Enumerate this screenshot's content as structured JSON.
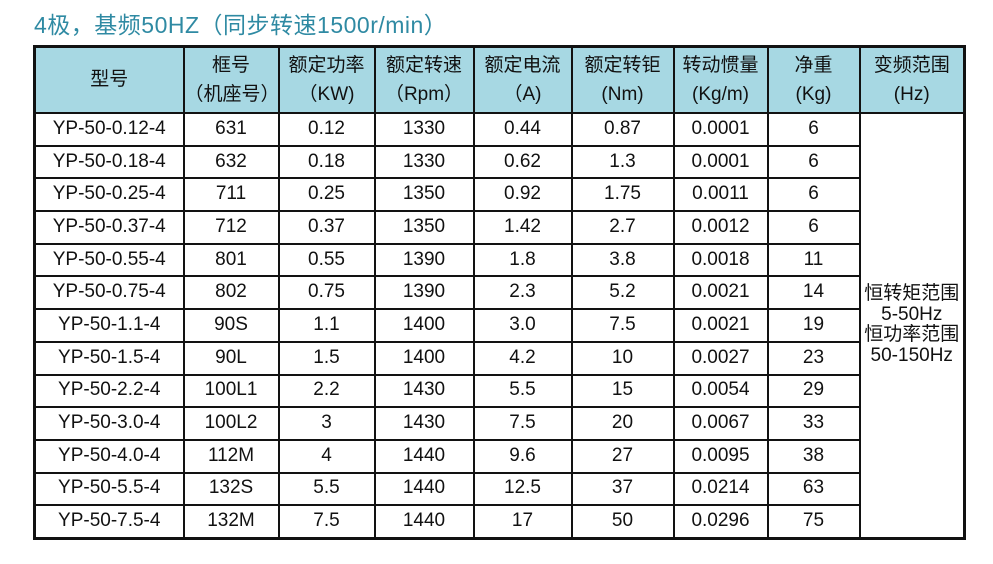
{
  "title": "4极，基频50HZ（同步转速1500r/min）",
  "colors": {
    "title_text": "#2f8aa3",
    "header_bg": "#a7d8e3",
    "border": "#121212",
    "cell_bg": "#ffffff"
  },
  "chart_data": {
    "type": "table",
    "title": "4极，基频50HZ（同步转速1500r/min）",
    "columns": [
      {
        "line1": "型号",
        "line2": ""
      },
      {
        "line1": "框号",
        "line2": "（机座号）"
      },
      {
        "line1": "额定功率",
        "line2": "（KW)"
      },
      {
        "line1": "额定转速",
        "line2": "（Rpm）"
      },
      {
        "line1": "额定电流",
        "line2": "（A)"
      },
      {
        "line1": "额定转钜",
        "line2": "(Nm)"
      },
      {
        "line1": "转动惯量",
        "line2": "(Kg/m)"
      },
      {
        "line1": "净重",
        "line2": "(Kg)"
      },
      {
        "line1": "变频范围",
        "line2": "(Hz)"
      }
    ],
    "rows": [
      [
        "YP-50-0.12-4",
        "631",
        "0.12",
        "1330",
        "0.44",
        "0.87",
        "0.0001",
        "6"
      ],
      [
        "YP-50-0.18-4",
        "632",
        "0.18",
        "1330",
        "0.62",
        "1.3",
        "0.0001",
        "6"
      ],
      [
        "YP-50-0.25-4",
        "711",
        "0.25",
        "1350",
        "0.92",
        "1.75",
        "0.0011",
        "6"
      ],
      [
        "YP-50-0.37-4",
        "712",
        "0.37",
        "1350",
        "1.42",
        "2.7",
        "0.0012",
        "6"
      ],
      [
        "YP-50-0.55-4",
        "801",
        "0.55",
        "1390",
        "1.8",
        "3.8",
        "0.0018",
        "11"
      ],
      [
        "YP-50-0.75-4",
        "802",
        "0.75",
        "1390",
        "2.3",
        "5.2",
        "0.0021",
        "14"
      ],
      [
        "YP-50-1.1-4",
        "90S",
        "1.1",
        "1400",
        "3.0",
        "7.5",
        "0.0021",
        "19"
      ],
      [
        "YP-50-1.5-4",
        "90L",
        "1.5",
        "1400",
        "4.2",
        "10",
        "0.0027",
        "23"
      ],
      [
        "YP-50-2.2-4",
        "100L1",
        "2.2",
        "1430",
        "5.5",
        "15",
        "0.0054",
        "29"
      ],
      [
        "YP-50-3.0-4",
        "100L2",
        "3",
        "1430",
        "7.5",
        "20",
        "0.0067",
        "33"
      ],
      [
        "YP-50-4.0-4",
        "112M",
        "4",
        "1440",
        "9.6",
        "27",
        "0.0095",
        "38"
      ],
      [
        "YP-50-5.5-4",
        "132S",
        "5.5",
        "1440",
        "12.5",
        "37",
        "0.0214",
        "63"
      ],
      [
        "YP-50-7.5-4",
        "132M",
        "7.5",
        "1440",
        "17",
        "50",
        "0.0296",
        "75"
      ]
    ],
    "merged_last_column_lines": [
      "恒转矩范围",
      "5-50Hz",
      "恒功率范围",
      "50-150Hz"
    ]
  }
}
